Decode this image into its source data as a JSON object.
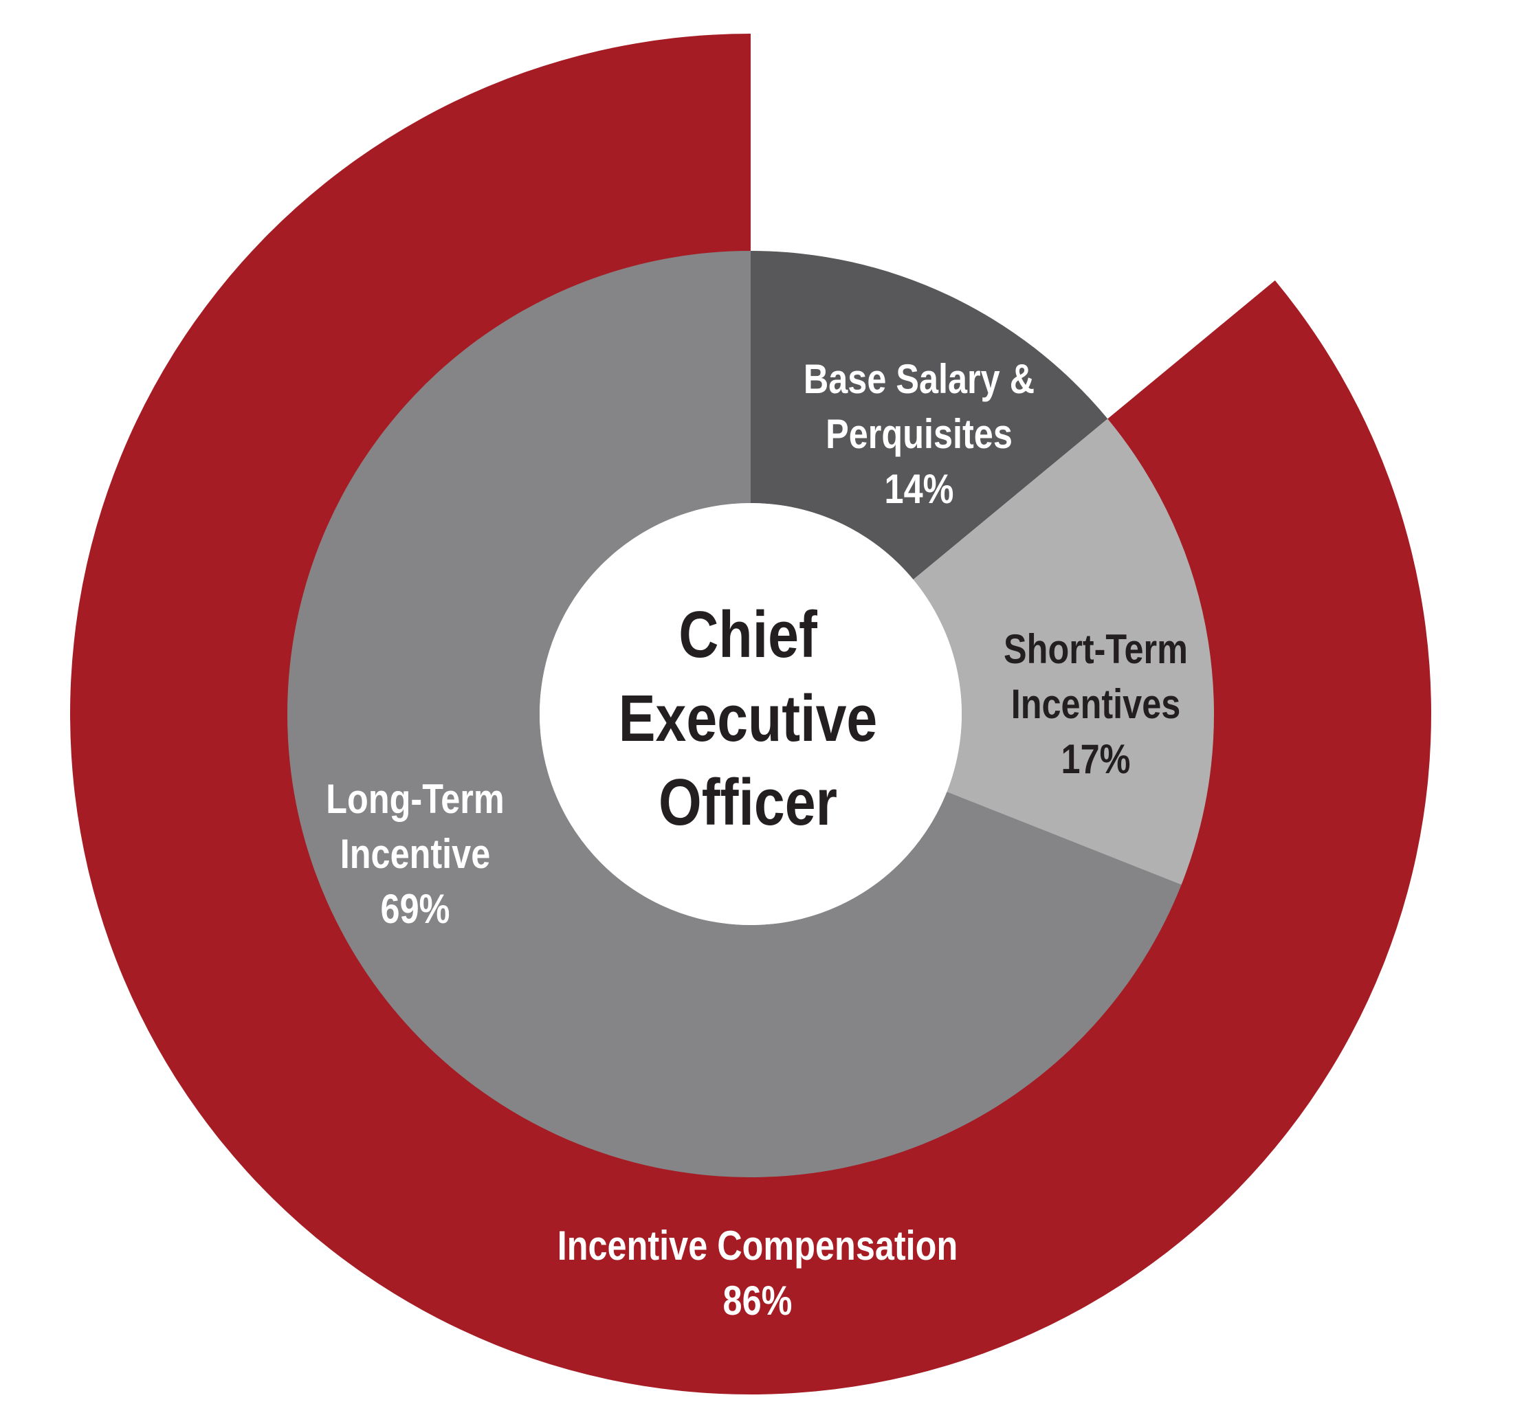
{
  "chart_data": {
    "type": "donut",
    "center_label": "Chief Executive Officer",
    "categories": [
      "Base Salary & Perquisites",
      "Short-Term Incentives",
      "Long-Term Incentive"
    ],
    "values": [
      14,
      17,
      69
    ],
    "value_labels": [
      "14%",
      "17%",
      "69%"
    ],
    "colors": [
      "#58585a",
      "#b1b1b1",
      "#858587"
    ],
    "outer": {
      "categories": [
        "Incentive Compensation"
      ],
      "values": [
        86
      ],
      "value_labels": [
        "86%"
      ],
      "color": "#a61c24"
    }
  }
}
